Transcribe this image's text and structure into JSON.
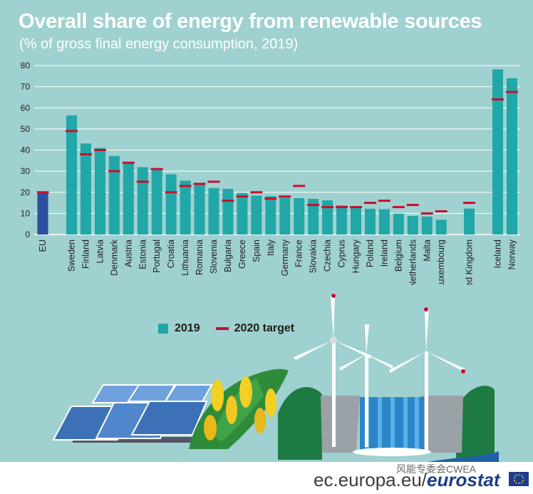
{
  "title": "Overall share of energy from renewable sources",
  "subtitle": "(% of gross final energy consumption, 2019)",
  "legend": {
    "bar_label": "2019",
    "target_label": "2020 target"
  },
  "colors": {
    "background": "#9fd1d0",
    "bar": "#21a7a7",
    "eu_bar": "#2e4f9e",
    "target": "#c8102e",
    "grid": "#ffffff",
    "text": "#1d1d1b"
  },
  "footer": {
    "url": "ec.europa.eu/",
    "brand": "eurostat",
    "watermark": "风能专委会CWEA",
    "flag_icon": "eu-flag-icon"
  },
  "chart_data": {
    "type": "bar",
    "title": "Overall share of energy from renewable sources",
    "subtitle": "(% of gross final energy consumption, 2019)",
    "ylim": [
      0,
      80
    ],
    "yticks": [
      0,
      10,
      20,
      30,
      40,
      50,
      60,
      70,
      80
    ],
    "grid": true,
    "legend_position": "bottom-center",
    "groups": [
      [
        "EU"
      ],
      [
        "Sweden",
        "Finland",
        "Latvia",
        "Denmark",
        "Austria",
        "Estonia",
        "Portugal",
        "Croatia",
        "Lithuania",
        "Romania",
        "Slovenia",
        "Bulgaria",
        "Greece",
        "Spain",
        "Italy",
        "Germany",
        "France",
        "Slovakia",
        "Czechia",
        "Cyprus",
        "Hungary",
        "Poland",
        "Ireland",
        "Belgium",
        "Netherlands",
        "Malta",
        "Luxembourg"
      ],
      [
        "United Kingdom"
      ],
      [
        "Iceland",
        "Norway"
      ]
    ],
    "categories": [
      "EU",
      "Sweden",
      "Finland",
      "Latvia",
      "Denmark",
      "Austria",
      "Estonia",
      "Portugal",
      "Croatia",
      "Lithuania",
      "Romania",
      "Slovenia",
      "Bulgaria",
      "Greece",
      "Spain",
      "Italy",
      "Germany",
      "France",
      "Slovakia",
      "Czechia",
      "Cyprus",
      "Hungary",
      "Poland",
      "Ireland",
      "Belgium",
      "Netherlands",
      "Malta",
      "Luxembourg",
      "United Kingdom",
      "Iceland",
      "Norway"
    ],
    "series": [
      {
        "name": "2019",
        "values": [
          19.7,
          56.4,
          43.1,
          41.0,
          37.2,
          33.6,
          31.9,
          30.6,
          28.5,
          25.5,
          24.3,
          22.0,
          21.6,
          19.7,
          18.4,
          18.2,
          17.4,
          17.2,
          16.9,
          16.2,
          13.8,
          12.6,
          12.2,
          12.0,
          9.9,
          8.8,
          8.5,
          7.0,
          12.3,
          78.2,
          74.0
        ]
      },
      {
        "name": "2020 target",
        "values": [
          20,
          49,
          38,
          40,
          30,
          34,
          25,
          31,
          20,
          23,
          24,
          25,
          16,
          18,
          20,
          17,
          18,
          23,
          14,
          13,
          13,
          13,
          15,
          16,
          13,
          14,
          10,
          11,
          15,
          64,
          67.5
        ]
      }
    ]
  }
}
